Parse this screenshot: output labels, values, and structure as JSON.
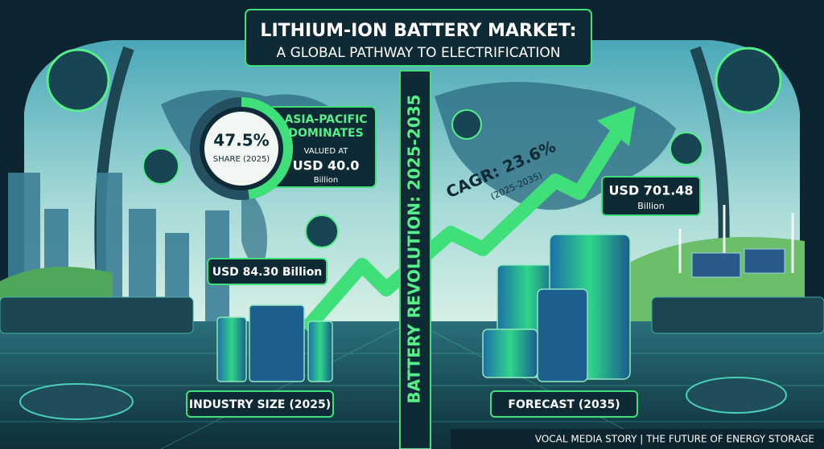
{
  "title": {
    "line1": "LITHIUM-ION BATTERY MARKET:",
    "line2": "A GLOBAL PATHWAY TO ELECTRIFICATION"
  },
  "divider": "BATTERY REVOLUTION: 2025-2035",
  "share": {
    "value": 47.5,
    "label": "47.5%",
    "caption": "SHARE (2025)"
  },
  "region": {
    "heading1": "ASIA-PACIFIC",
    "heading2": "DOMINATES",
    "valued": "VALUED AT",
    "amount": "USD 40.0",
    "unit": "Billion"
  },
  "industry": {
    "amount": "USD 84.30 Billion",
    "caption": "INDUSTRY SIZE (2025)"
  },
  "growth": {
    "cagr": "CAGR: 23.6%",
    "period": "(2025-2035)"
  },
  "forecast": {
    "amount": "USD 701.48",
    "unit": "Billion",
    "caption": "FORECAST (2035)"
  },
  "footer": "VOCAL MEDIA STORY | THE FUTURE OF ENERGY STORAGE"
}
